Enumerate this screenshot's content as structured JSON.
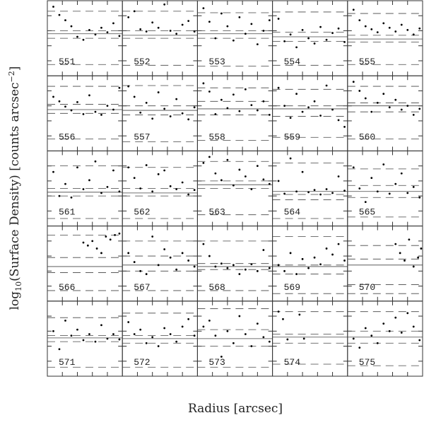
{
  "axes": {
    "x_label": "Radius [arcsec]",
    "y_label": {
      "a": "log",
      "sub": "10",
      "b": "(Surface Density) [counts arcsec",
      "sup": "−2",
      "c": "]"
    }
  },
  "chart_data": [
    {
      "type": "scatter",
      "title": "551",
      "x": [
        0.8,
        1.6,
        2.4,
        3.2,
        4.0,
        4.8,
        5.6,
        6.4,
        7.2,
        8.0,
        8.8,
        9.6
      ],
      "y": [
        9.2,
        8.1,
        7.4,
        6.6,
        5.2,
        4.8,
        6.1,
        5.5,
        6.4,
        5.8,
        7.0,
        5.3
      ],
      "levels": {
        "solid": 5.6,
        "dashed": [
          8.6,
          6.0,
          5.0,
          1.5
        ]
      },
      "xlim": [
        0,
        10
      ],
      "ylim": [
        0,
        10
      ],
      "xticks": [
        2,
        4,
        6,
        8
      ],
      "yticks": [
        2,
        4,
        6,
        8
      ]
    },
    {
      "type": "scatter",
      "title": "552",
      "x": [
        0.8,
        1.6,
        2.4,
        3.2,
        4.0,
        4.8,
        5.6,
        6.4,
        7.2,
        8.0,
        8.8,
        9.6
      ],
      "y": [
        7.8,
        8.6,
        6.2,
        5.9,
        7.1,
        6.4,
        9.5,
        6.0,
        5.6,
        6.8,
        7.3,
        5.9
      ],
      "levels": {
        "solid": 5.4,
        "dashed": [
          8.6,
          6.0,
          5.0,
          1.4
        ]
      },
      "xlim": [
        0,
        10
      ],
      "ylim": [
        0,
        10
      ],
      "xticks": [
        2,
        4,
        6,
        8
      ],
      "yticks": [
        2,
        4,
        6,
        8
      ]
    },
    {
      "type": "scatter",
      "title": "553",
      "x": [
        0.8,
        1.6,
        2.4,
        3.2,
        4.0,
        4.8,
        5.6,
        6.4,
        7.2,
        8.0,
        8.8,
        9.6
      ],
      "y": [
        9.0,
        7.2,
        5.0,
        8.3,
        6.6,
        4.7,
        7.8,
        5.6,
        6.9,
        4.2,
        6.0,
        7.4
      ],
      "levels": {
        "solid": 5.6,
        "dashed": [
          8.4,
          6.0,
          5.0,
          1.3
        ]
      },
      "xlim": [
        0,
        10
      ],
      "ylim": [
        0,
        10
      ],
      "xticks": [
        2,
        4,
        6,
        8
      ],
      "yticks": [
        2,
        4,
        6,
        8
      ]
    },
    {
      "type": "scatter",
      "title": "554",
      "x": [
        0.8,
        1.6,
        2.4,
        3.2,
        4.0,
        4.8,
        5.6,
        6.4,
        7.2,
        8.0,
        8.8,
        9.6
      ],
      "y": [
        7.6,
        4.6,
        5.5,
        3.8,
        6.1,
        5.0,
        4.3,
        6.5,
        4.8,
        5.7,
        6.3,
        4.5
      ],
      "levels": {
        "solid": 5.2,
        "dashed": [
          8.5,
          5.8,
          4.6,
          1.4
        ]
      },
      "xlim": [
        0,
        10
      ],
      "ylim": [
        0,
        10
      ],
      "xticks": [
        2,
        4,
        6,
        8
      ],
      "yticks": [
        2,
        4,
        6,
        8
      ]
    },
    {
      "type": "scatter",
      "title": "555",
      "x": [
        0.8,
        1.6,
        2.4,
        3.2,
        4.0,
        4.8,
        5.6,
        6.4,
        7.2,
        8.0,
        8.8,
        9.6
      ],
      "y": [
        8.8,
        7.4,
        6.6,
        6.2,
        5.8,
        7.0,
        6.4,
        5.9,
        6.8,
        6.1,
        5.5,
        6.3
      ],
      "levels": {
        "solid": 4.9,
        "dashed": [
          8.3,
          5.4,
          4.5,
          1.5
        ]
      },
      "xlim": [
        0,
        10
      ],
      "ylim": [
        0,
        10
      ],
      "xticks": [
        2,
        4,
        6,
        8
      ],
      "yticks": [
        2,
        4,
        6,
        8
      ]
    },
    {
      "type": "scatter",
      "title": "556",
      "x": [
        0.8,
        1.6,
        2.4,
        3.2,
        4.0,
        4.8,
        5.6,
        6.4,
        7.2,
        8.0,
        8.8,
        9.6
      ],
      "y": [
        7.2,
        6.6,
        5.9,
        5.4,
        6.5,
        4.9,
        7.4,
        5.2,
        4.8,
        6.0,
        5.5,
        8.4
      ],
      "levels": {
        "solid": 5.5,
        "dashed": [
          8.6,
          6.2,
          5.0,
          1.6
        ]
      },
      "xlim": [
        0,
        10
      ],
      "ylim": [
        0,
        10
      ],
      "xticks": [
        2,
        4,
        6,
        8
      ],
      "yticks": [
        2,
        4,
        6,
        8
      ]
    },
    {
      "type": "scatter",
      "title": "557",
      "x": [
        0.8,
        1.6,
        2.4,
        3.2,
        4.0,
        4.8,
        5.6,
        6.4,
        7.2,
        8.0,
        8.8,
        9.6
      ],
      "y": [
        8.6,
        7.2,
        5.1,
        6.4,
        4.3,
        7.8,
        5.6,
        4.6,
        6.9,
        5.0,
        4.2,
        5.8
      ],
      "levels": {
        "solid": 5.4,
        "dashed": [
          8.7,
          6.0,
          4.8,
          1.2
        ]
      },
      "xlim": [
        0,
        10
      ],
      "ylim": [
        0,
        10
      ],
      "xticks": [
        2,
        4,
        6,
        8
      ],
      "yticks": [
        2,
        4,
        6,
        8
      ]
    },
    {
      "type": "scatter",
      "title": "558",
      "x": [
        0.8,
        1.6,
        2.4,
        3.2,
        4.0,
        4.8,
        5.6,
        6.4,
        7.2,
        8.0,
        8.8,
        9.6
      ],
      "y": [
        9.0,
        7.9,
        4.9,
        6.8,
        5.7,
        7.5,
        5.3,
        8.2,
        6.1,
        5.4,
        6.6,
        4.8
      ],
      "levels": {
        "solid": 5.6,
        "dashed": [
          8.4,
          6.6,
          4.8,
          1.4
        ]
      },
      "xlim": [
        0,
        10
      ],
      "ylim": [
        0,
        10
      ],
      "xticks": [
        2,
        4,
        6,
        8
      ],
      "yticks": [
        2,
        4,
        6,
        8
      ]
    },
    {
      "type": "scatter",
      "title": "559",
      "x": [
        0.8,
        1.6,
        2.4,
        3.2,
        4.0,
        4.8,
        5.6,
        6.4,
        7.2,
        8.0,
        8.8,
        9.6
      ],
      "y": [
        8.4,
        6.0,
        4.4,
        7.6,
        5.2,
        5.8,
        6.6,
        4.7,
        8.7,
        5.5,
        4.1,
        3.2
      ],
      "levels": {
        "solid": 5.6,
        "dashed": [
          8.2,
          6.0,
          4.6,
          1.8
        ]
      },
      "xlim": [
        0,
        10
      ],
      "ylim": [
        0,
        10
      ],
      "xticks": [
        2,
        4,
        6,
        8
      ],
      "yticks": [
        2,
        4,
        6,
        8
      ]
    },
    {
      "type": "scatter",
      "title": "560",
      "x": [
        0.8,
        1.6,
        2.4,
        3.2,
        4.0,
        4.8,
        5.6,
        6.4,
        7.2,
        8.0,
        8.8,
        9.6
      ],
      "y": [
        9.2,
        8.0,
        7.0,
        5.2,
        6.4,
        7.6,
        5.8,
        6.8,
        5.5,
        6.0,
        4.8,
        5.6
      ],
      "levels": {
        "solid": 6.0,
        "dashed": [
          8.6,
          6.4,
          5.2,
          1.6
        ]
      },
      "xlim": [
        0,
        10
      ],
      "ylim": [
        0,
        10
      ],
      "xticks": [
        2,
        4,
        6,
        8
      ],
      "yticks": [
        2,
        4,
        6,
        8
      ]
    },
    {
      "type": "scatter",
      "title": "561",
      "x": [
        0.8,
        1.6,
        2.4,
        3.2,
        4.0,
        4.8,
        5.6,
        6.4,
        7.2,
        8.0,
        8.8,
        9.6
      ],
      "y": [
        7.2,
        4.0,
        5.6,
        3.8,
        7.8,
        4.9,
        6.1,
        8.6,
        4.4,
        5.2,
        7.4,
        4.6
      ],
      "levels": {
        "solid": 4.5,
        "dashed": [
          8.0,
          5.0,
          4.0,
          1.0
        ]
      },
      "xlim": [
        0,
        10
      ],
      "ylim": [
        0,
        10
      ],
      "xticks": [
        2,
        4,
        6,
        8
      ],
      "yticks": [
        2,
        4,
        6,
        8
      ]
    },
    {
      "type": "scatter",
      "title": "562",
      "x": [
        0.8,
        1.6,
        2.4,
        3.2,
        4.0,
        4.8,
        5.6,
        6.4,
        7.2,
        8.0,
        8.8,
        9.6
      ],
      "y": [
        7.8,
        6.4,
        5.0,
        8.1,
        4.6,
        6.9,
        7.4,
        5.3,
        4.9,
        5.8,
        4.2,
        4.8
      ],
      "levels": {
        "solid": 4.4,
        "dashed": [
          7.8,
          5.0,
          4.0,
          1.0
        ]
      },
      "xlim": [
        0,
        10
      ],
      "ylim": [
        0,
        10
      ],
      "xticks": [
        2,
        4,
        6,
        8
      ],
      "yticks": [
        2,
        4,
        6,
        8
      ]
    },
    {
      "type": "scatter",
      "title": "563",
      "x": [
        0.8,
        1.6,
        2.4,
        3.2,
        4.0,
        4.8,
        5.6,
        6.4,
        7.2,
        8.0,
        8.8,
        9.6
      ],
      "y": [
        8.4,
        9.2,
        7.0,
        6.1,
        8.8,
        5.4,
        7.5,
        6.6,
        4.9,
        8.0,
        6.2,
        5.6
      ],
      "levels": {
        "solid": 5.5,
        "dashed": [
          8.6,
          6.0,
          5.0,
          1.5
        ]
      },
      "xlim": [
        0,
        10
      ],
      "ylim": [
        0,
        10
      ],
      "xticks": [
        2,
        4,
        6,
        8
      ],
      "yticks": [
        2,
        4,
        6,
        8
      ]
    },
    {
      "type": "scatter",
      "title": "564",
      "x": [
        0.8,
        1.6,
        2.4,
        3.2,
        4.0,
        4.8,
        5.6,
        6.4,
        7.2,
        8.0,
        8.8,
        9.6
      ],
      "y": [
        6.0,
        4.3,
        9.0,
        4.6,
        7.2,
        4.5,
        4.8,
        4.2,
        4.9,
        4.4,
        6.6,
        4.7
      ],
      "levels": {
        "solid": 4.6,
        "dashed": [
          8.4,
          4.2,
          3.5,
          1.0
        ]
      },
      "xlim": [
        0,
        10
      ],
      "ylim": [
        0,
        10
      ],
      "xticks": [
        2,
        4,
        6,
        8
      ],
      "yticks": [
        2,
        4,
        6,
        8
      ]
    },
    {
      "type": "scatter",
      "title": "565",
      "x": [
        0.8,
        1.6,
        2.4,
        3.2,
        4.0,
        4.8,
        5.6,
        6.4,
        7.2,
        8.0,
        8.8,
        9.6
      ],
      "y": [
        7.8,
        5.0,
        3.2,
        6.4,
        4.6,
        8.2,
        4.3,
        5.6,
        7.0,
        4.4,
        5.2,
        3.8
      ],
      "levels": {
        "solid": 4.6,
        "dashed": [
          7.6,
          5.4,
          3.8,
          1.2
        ]
      },
      "xlim": [
        0,
        10
      ],
      "ylim": [
        0,
        10
      ],
      "xticks": [
        2,
        4,
        6,
        8
      ],
      "yticks": [
        2,
        4,
        6,
        8
      ]
    },
    {
      "type": "scatter",
      "title": "566",
      "x": [
        4.8,
        5.4,
        6.0,
        6.6,
        7.2,
        7.8,
        8.4,
        9.0,
        9.6
      ],
      "y": [
        7.8,
        7.4,
        8.0,
        7.0,
        6.4,
        8.6,
        8.2,
        8.8,
        9.0
      ],
      "levels": {
        "solid": 4.6,
        "dashed": [
          8.8,
          5.8,
          3.8,
          1.4
        ]
      },
      "xlim": [
        0,
        10
      ],
      "ylim": [
        0,
        10
      ],
      "xticks": [
        2,
        4,
        6,
        8
      ],
      "yticks": [
        2,
        4,
        6,
        8
      ]
    },
    {
      "type": "scatter",
      "title": "567",
      "x": [
        0.8,
        1.6,
        2.4,
        3.2,
        4.0,
        4.8,
        5.6,
        6.4,
        7.2,
        8.0,
        8.8,
        9.6
      ],
      "y": [
        6.4,
        5.2,
        4.0,
        3.6,
        8.6,
        4.8,
        6.9,
        5.8,
        4.2,
        6.4,
        5.4,
        4.6
      ],
      "levels": {
        "solid": 4.8,
        "dashed": [
          8.0,
          6.0,
          4.0,
          1.4
        ]
      },
      "xlim": [
        0,
        10
      ],
      "ylim": [
        0,
        10
      ],
      "xticks": [
        2,
        4,
        6,
        8
      ],
      "yticks": [
        2,
        4,
        6,
        8
      ]
    },
    {
      "type": "scatter",
      "title": "568",
      "x": [
        0.8,
        1.6,
        2.4,
        3.2,
        4.0,
        4.8,
        5.6,
        6.4,
        7.2,
        8.0,
        8.8,
        9.6
      ],
      "y": [
        7.6,
        6.0,
        4.6,
        5.0,
        4.4,
        4.8,
        3.6,
        4.2,
        4.9,
        4.0,
        6.8,
        4.4
      ],
      "levels": {
        "solid": 4.6,
        "dashed": [
          8.0,
          5.0,
          4.2,
          1.4
        ]
      },
      "xlim": [
        0,
        10
      ],
      "ylim": [
        0,
        10
      ],
      "xticks": [
        2,
        4,
        6,
        8
      ],
      "yticks": [
        2,
        4,
        6,
        8
      ]
    },
    {
      "type": "scatter",
      "title": "569",
      "x": [
        0.8,
        1.6,
        2.4,
        3.2,
        4.0,
        4.8,
        5.6,
        6.4,
        7.2,
        8.0,
        8.8,
        9.6
      ],
      "y": [
        4.8,
        4.0,
        6.4,
        3.6,
        5.6,
        4.4,
        5.8,
        4.9,
        7.0,
        6.2,
        7.6,
        5.4
      ],
      "levels": {
        "solid": 4.6,
        "dashed": [
          8.6,
          4.8,
          3.6,
          1.0
        ]
      },
      "xlim": [
        0,
        10
      ],
      "ylim": [
        0,
        10
      ],
      "xticks": [
        2,
        4,
        6,
        8
      ],
      "yticks": [
        2,
        4,
        6,
        8
      ]
    },
    {
      "type": "scatter",
      "title": "570",
      "x": [
        6.4,
        7.0,
        7.6,
        8.2,
        8.8,
        9.4,
        9.8
      ],
      "y": [
        7.6,
        6.4,
        5.4,
        8.2,
        4.6,
        5.8,
        7.0
      ],
      "levels": {
        "solid": 4.8,
        "dashed": [
          7.4,
          5.6,
          2.2,
          1.0
        ]
      },
      "xlim": [
        0,
        10
      ],
      "ylim": [
        0,
        10
      ],
      "xticks": [
        2,
        4,
        6,
        8
      ],
      "yticks": [
        2,
        4,
        6,
        8
      ]
    },
    {
      "type": "scatter",
      "title": "571",
      "x": [
        0.8,
        1.6,
        2.4,
        3.2,
        4.0,
        4.8,
        5.6,
        6.4,
        7.2,
        8.0,
        8.8,
        9.6
      ],
      "y": [
        6.0,
        3.6,
        7.4,
        5.4,
        6.2,
        4.8,
        5.6,
        4.6,
        6.8,
        5.0,
        5.6,
        4.9
      ],
      "levels": {
        "solid": 5.1,
        "dashed": [
          7.8,
          5.4,
          4.6,
          1.2
        ]
      },
      "xlim": [
        0,
        10
      ],
      "ylim": [
        0,
        10
      ],
      "xticks": [
        2,
        4,
        6,
        8
      ],
      "yticks": [
        2,
        4,
        6,
        8
      ]
    },
    {
      "type": "scatter",
      "title": "572",
      "x": [
        0.8,
        1.6,
        2.4,
        3.2,
        4.0,
        4.8,
        5.6,
        6.4,
        7.2,
        8.0,
        8.8,
        9.6
      ],
      "y": [
        7.2,
        5.6,
        6.2,
        4.4,
        5.2,
        4.0,
        6.4,
        5.6,
        4.6,
        6.6,
        7.6,
        5.4
      ],
      "levels": {
        "solid": 5.0,
        "dashed": [
          8.4,
          5.4,
          4.4,
          1.2
        ]
      },
      "xlim": [
        0,
        10
      ],
      "ylim": [
        0,
        10
      ],
      "xticks": [
        2,
        4,
        6,
        8
      ],
      "yticks": [
        2,
        4,
        6,
        8
      ]
    },
    {
      "type": "scatter",
      "title": "573",
      "x": [
        0.8,
        1.6,
        2.4,
        3.2,
        4.0,
        4.8,
        5.6,
        6.4,
        7.2,
        8.0,
        8.8,
        9.6
      ],
      "y": [
        6.6,
        7.4,
        5.4,
        2.6,
        6.0,
        4.4,
        8.0,
        5.6,
        4.0,
        7.0,
        5.2,
        4.6
      ],
      "levels": {
        "solid": 5.0,
        "dashed": [
          9.0,
          6.2,
          4.0,
          1.2
        ]
      },
      "xlim": [
        0,
        10
      ],
      "ylim": [
        0,
        10
      ],
      "xticks": [
        2,
        4,
        6,
        8
      ],
      "yticks": [
        2,
        4,
        6,
        8
      ]
    },
    {
      "type": "scatter",
      "title": "574",
      "x": [
        0.8,
        1.4,
        2.0,
        3.6,
        4.2
      ],
      "y": [
        8.6,
        7.6,
        4.9,
        8.2,
        5.0
      ],
      "levels": {
        "solid": 5.2,
        "dashed": [
          8.6,
          5.6,
          4.4,
          1.6
        ]
      },
      "xlim": [
        0,
        10
      ],
      "ylim": [
        0,
        10
      ],
      "xticks": [
        2,
        4,
        6,
        8
      ],
      "yticks": [
        2,
        4,
        6,
        8
      ]
    },
    {
      "type": "scatter",
      "title": "575",
      "x": [
        0.8,
        1.6,
        2.4,
        3.2,
        4.0,
        4.8,
        5.6,
        6.4,
        7.2,
        8.0,
        8.8,
        9.6
      ],
      "y": [
        5.0,
        3.8,
        6.4,
        5.4,
        4.4,
        7.0,
        6.0,
        7.8,
        5.8,
        8.4,
        6.6,
        4.8
      ],
      "levels": {
        "solid": 5.2,
        "dashed": [
          8.6,
          6.0,
          4.4,
          1.4
        ]
      },
      "xlim": [
        0,
        10
      ],
      "ylim": [
        0,
        10
      ],
      "xticks": [
        2,
        4,
        6,
        8
      ],
      "yticks": [
        2,
        4,
        6,
        8
      ]
    }
  ]
}
